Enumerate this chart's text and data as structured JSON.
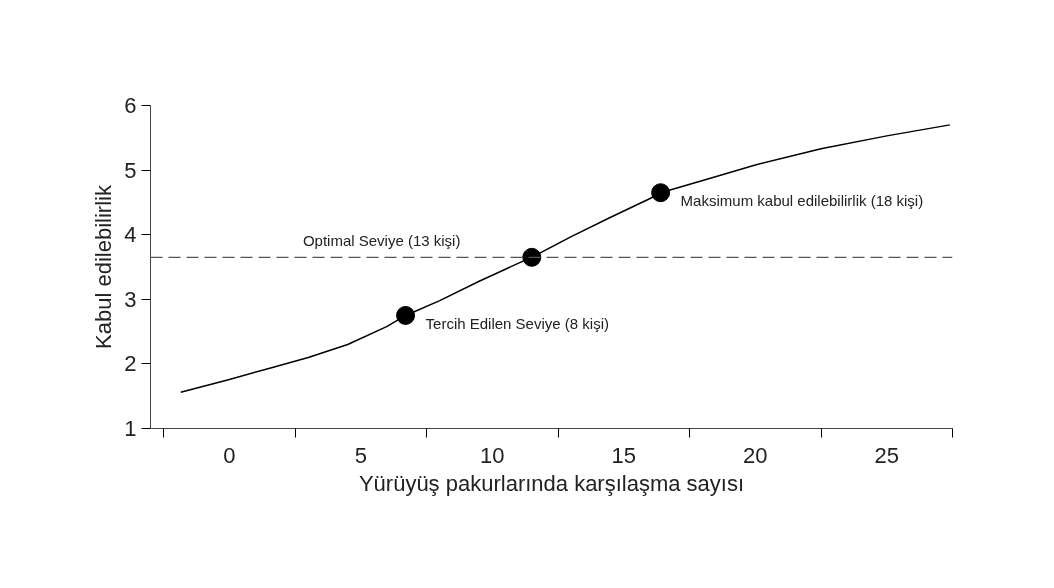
{
  "chart_data": {
    "type": "line",
    "xlabel": "Yürüyüş pakurlarında karşılaşma sayısı",
    "ylabel": "Kabul edilebilirlik",
    "xlim": [
      -3,
      27.5
    ],
    "ylim": [
      1,
      6
    ],
    "xticks": [
      {
        "value": -2.5,
        "label": null
      },
      0,
      {
        "value": 2.5,
        "label": null
      },
      5,
      {
        "value": 7.5,
        "label": null
      },
      10,
      {
        "value": 12.5,
        "label": null
      },
      15,
      {
        "value": 17.5,
        "label": null
      },
      20,
      {
        "value": 22.5,
        "label": null
      },
      25,
      {
        "value": 27.5,
        "label": null
      }
    ],
    "yticks": [
      1,
      2,
      3,
      4,
      5,
      6
    ],
    "grid": false,
    "series": [
      {
        "color": "#000000",
        "line_style": "solid",
        "marker": "none",
        "x": [
          -1.85,
          0,
          1.5,
          3,
          4.5,
          6,
          6.7,
          8,
          9.5,
          11,
          11.5,
          13,
          14.5,
          16,
          16.4,
          18,
          20,
          22.5,
          25,
          27.4
        ],
        "values": [
          1.56,
          1.76,
          1.93,
          2.1,
          2.3,
          2.58,
          2.75,
          2.98,
          3.28,
          3.56,
          3.65,
          3.97,
          4.27,
          4.56,
          4.65,
          4.84,
          5.08,
          5.33,
          5.53,
          5.7
        ]
      },
      {
        "type": "scatter",
        "color": "#000000",
        "marker": "circle",
        "x": [
          6.7,
          11.5,
          16.4
        ],
        "values": [
          2.75,
          3.65,
          4.65
        ]
      }
    ],
    "ref_lines": [
      {
        "axis": "y",
        "value": 3.65,
        "label": "Optimal Seviye (13 kişi)",
        "color": "#555555",
        "line_style": "dashed"
      }
    ],
    "annotations": [
      {
        "text": "Tercih Edilen Seviye (8 kişi)",
        "x": 6.7,
        "y": 2.75
      },
      {
        "text": "Maksimum kabul edilebilirlik (18 kişi)",
        "x": 16.4,
        "y": 4.65
      }
    ]
  }
}
